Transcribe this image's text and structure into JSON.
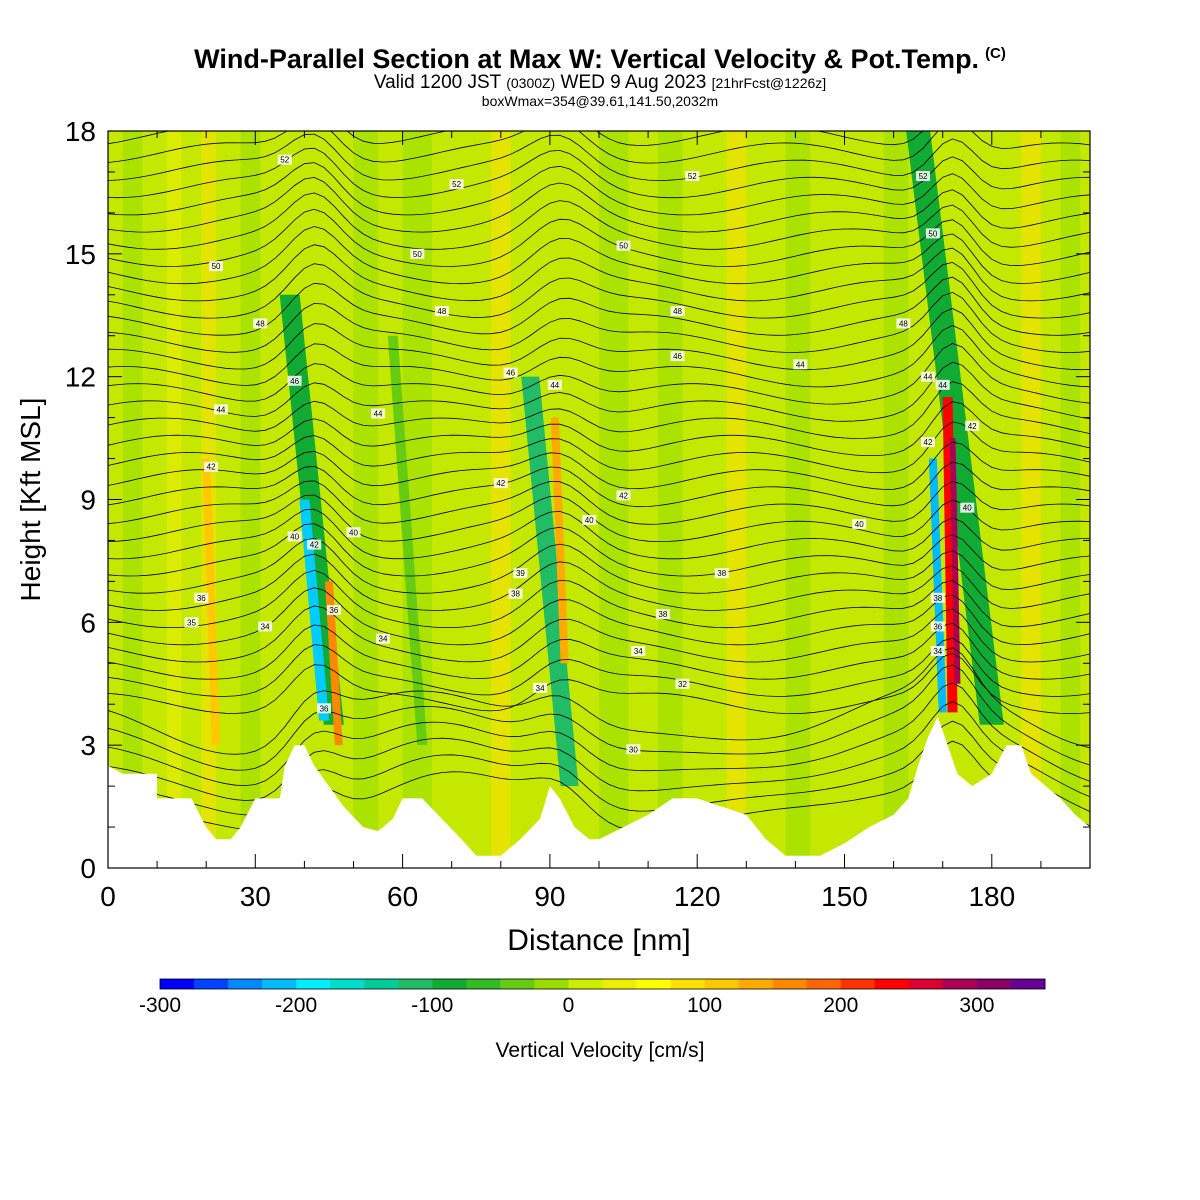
{
  "title": {
    "main": "Wind-Parallel Section at Max W: Vertical Velocity & Pot.Temp.",
    "copyright": "(C)",
    "valid_prefix": "Valid 1200 JST",
    "valid_z": "(0300Z)",
    "valid_date": "WED 9 Aug 2023",
    "forecast": "[21hrFcst@1226z]",
    "boxinfo": "boxWmax=354@39.61,141.50,2032m"
  },
  "chart_data": {
    "type": "heatmap",
    "xlabel": "Distance [nm]",
    "ylabel": "Height [Kft MSL]",
    "xlim": [
      0,
      200
    ],
    "ylim": [
      0,
      18
    ],
    "x_ticks": [
      0,
      30,
      60,
      90,
      120,
      150,
      180
    ],
    "y_ticks": [
      0,
      3,
      6,
      9,
      12,
      15,
      18
    ],
    "colorbar": {
      "label": "Vertical Velocity [cm/s]",
      "range": [
        -300,
        350
      ],
      "tick_values": [
        -300,
        -200,
        -100,
        0,
        100,
        200,
        300
      ],
      "tick_labels": [
        "-300",
        "-200",
        "-100",
        "0",
        "100",
        "200",
        "300"
      ],
      "colors": [
        "#0000ff",
        "#0044ff",
        "#0088ff",
        "#00bbff",
        "#00eeff",
        "#00ddcc",
        "#00cc99",
        "#22bb66",
        "#11aa33",
        "#33bb22",
        "#66cc11",
        "#99dd00",
        "#ccee00",
        "#eeee00",
        "#ffff00",
        "#ffe000",
        "#ffc800",
        "#ffaa00",
        "#ff8800",
        "#ff6600",
        "#ff3300",
        "#ff0000",
        "#dd0033",
        "#aa0055",
        "#880066",
        "#660099"
      ]
    },
    "background_color": "#c4e800",
    "contour_field": "Pot.Temp.",
    "contour_labels": [
      {
        "x": 36,
        "y": 17.3,
        "value": "52"
      },
      {
        "x": 71,
        "y": 16.7,
        "value": "52"
      },
      {
        "x": 119,
        "y": 16.9,
        "value": "52"
      },
      {
        "x": 166,
        "y": 16.9,
        "value": "52"
      },
      {
        "x": 22,
        "y": 14.7,
        "value": "50"
      },
      {
        "x": 63,
        "y": 15.0,
        "value": "50"
      },
      {
        "x": 105,
        "y": 15.2,
        "value": "50"
      },
      {
        "x": 168,
        "y": 15.5,
        "value": "50"
      },
      {
        "x": 31,
        "y": 13.3,
        "value": "48"
      },
      {
        "x": 68,
        "y": 13.6,
        "value": "48"
      },
      {
        "x": 116,
        "y": 13.6,
        "value": "48"
      },
      {
        "x": 162,
        "y": 13.3,
        "value": "48"
      },
      {
        "x": 116,
        "y": 12.5,
        "value": "46"
      },
      {
        "x": 38,
        "y": 11.9,
        "value": "46"
      },
      {
        "x": 82,
        "y": 12.1,
        "value": "46"
      },
      {
        "x": 23,
        "y": 11.2,
        "value": "44"
      },
      {
        "x": 55,
        "y": 11.1,
        "value": "44"
      },
      {
        "x": 91,
        "y": 11.8,
        "value": "44"
      },
      {
        "x": 141,
        "y": 12.3,
        "value": "44"
      },
      {
        "x": 167,
        "y": 12.0,
        "value": "44"
      },
      {
        "x": 170,
        "y": 11.8,
        "value": "44"
      },
      {
        "x": 21,
        "y": 9.8,
        "value": "42"
      },
      {
        "x": 80,
        "y": 9.4,
        "value": "42"
      },
      {
        "x": 105,
        "y": 9.1,
        "value": "42"
      },
      {
        "x": 167,
        "y": 10.4,
        "value": "42"
      },
      {
        "x": 176,
        "y": 10.8,
        "value": "42"
      },
      {
        "x": 38,
        "y": 8.1,
        "value": "40"
      },
      {
        "x": 42,
        "y": 7.9,
        "value": "42"
      },
      {
        "x": 50,
        "y": 8.2,
        "value": "40"
      },
      {
        "x": 98,
        "y": 8.5,
        "value": "40"
      },
      {
        "x": 153,
        "y": 8.4,
        "value": "40"
      },
      {
        "x": 175,
        "y": 8.8,
        "value": "40"
      },
      {
        "x": 84,
        "y": 7.2,
        "value": "39"
      },
      {
        "x": 125,
        "y": 7.2,
        "value": "38"
      },
      {
        "x": 19,
        "y": 6.6,
        "value": "36"
      },
      {
        "x": 83,
        "y": 6.7,
        "value": "38"
      },
      {
        "x": 113,
        "y": 6.2,
        "value": "38"
      },
      {
        "x": 169,
        "y": 6.6,
        "value": "38"
      },
      {
        "x": 17,
        "y": 6.0,
        "value": "35"
      },
      {
        "x": 32,
        "y": 5.9,
        "value": "34"
      },
      {
        "x": 46,
        "y": 6.3,
        "value": "36"
      },
      {
        "x": 169,
        "y": 5.9,
        "value": "36"
      },
      {
        "x": 56,
        "y": 5.6,
        "value": "34"
      },
      {
        "x": 108,
        "y": 5.3,
        "value": "34"
      },
      {
        "x": 169,
        "y": 5.3,
        "value": "34"
      },
      {
        "x": 88,
        "y": 4.4,
        "value": "34"
      },
      {
        "x": 117,
        "y": 4.5,
        "value": "32"
      },
      {
        "x": 44,
        "y": 3.9,
        "value": "36"
      },
      {
        "x": 107,
        "y": 2.9,
        "value": "30"
      }
    ]
  }
}
